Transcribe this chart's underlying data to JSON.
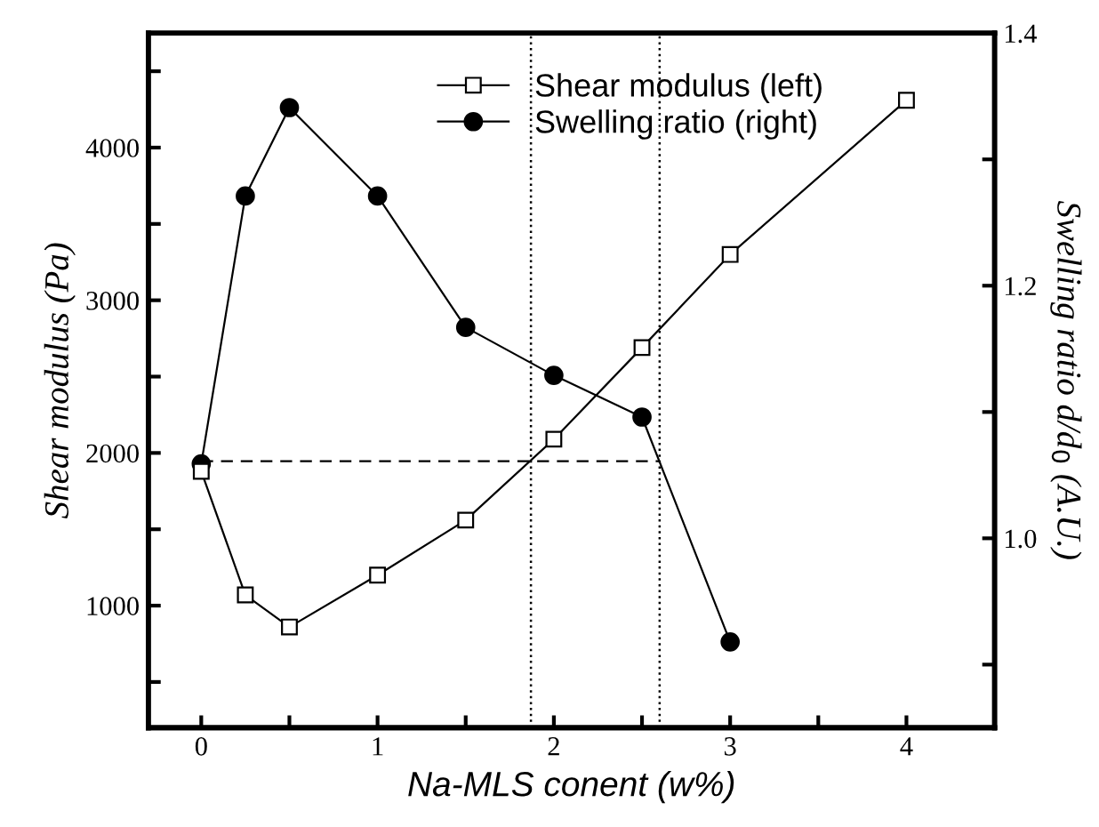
{
  "chart_data": {
    "type": "line",
    "xlabel": "Na-MLS conent (w%)",
    "ylabel": "Shear modulus (Pa)",
    "y2label": "Swelling ratio d/d$_{0}$ (A.U.)",
    "x": [
      0,
      0.25,
      0.5,
      1,
      1.5,
      2,
      2.5,
      3,
      4
    ],
    "series": [
      {
        "name": "Shear modulus (left)",
        "color": "#000000",
        "marker": "square",
        "values": [
          1880,
          1070,
          860,
          1200,
          1560,
          2090,
          2690,
          3300,
          4310
        ]
      },
      {
        "name": "Swelling ratio (right)",
        "color": "#000000",
        "marker": "circle",
        "axis": "y2",
        "x": [
          0,
          0.25,
          0.5,
          1,
          1.5,
          2,
          2.5,
          3
        ],
        "values": [
          1.059,
          1.271,
          1.341,
          1.271,
          1.167,
          1.129,
          1.096,
          0.918
        ]
      },
      {
        "color": "#000000",
        "marker": "none",
        "line_style": "dashed",
        "axis": "y2",
        "x": [
          0,
          2.6
        ],
        "values": [
          1.061,
          1.061
        ]
      }
    ],
    "ref_lines": [
      {
        "axis": "x",
        "value": 1.87,
        "line_style": "dotted",
        "color": "#000000"
      },
      {
        "axis": "x",
        "value": 2.6,
        "line_style": "dotted",
        "color": "#000000"
      }
    ],
    "xlim": [
      -0.3,
      4.5
    ],
    "xticks": [
      0,
      {
        "value": 0.5,
        "label": null
      },
      1,
      {
        "value": 1.5,
        "label": null
      },
      2,
      {
        "value": 2.5,
        "label": null
      },
      3,
      {
        "value": 3.5,
        "label": null
      },
      4
    ],
    "ylim": [
      200,
      4750
    ],
    "yticks": [
      {
        "value": 500,
        "label": null
      },
      1000,
      {
        "value": 1500,
        "label": null
      },
      2000,
      {
        "value": 2500,
        "label": null
      },
      3000,
      {
        "value": 3500,
        "label": null
      },
      4000,
      {
        "value": 4500,
        "label": null
      }
    ],
    "y2lim": [
      0.85,
      1.4
    ],
    "y2ticks": [
      {
        "value": 0.9,
        "label": null
      },
      {
        "value": 1.0,
        "label": "1.0"
      },
      {
        "value": 1.1,
        "label": null
      },
      1.2,
      {
        "value": 1.3,
        "label": null
      },
      1.4
    ],
    "legend": "top",
    "grid": false
  }
}
